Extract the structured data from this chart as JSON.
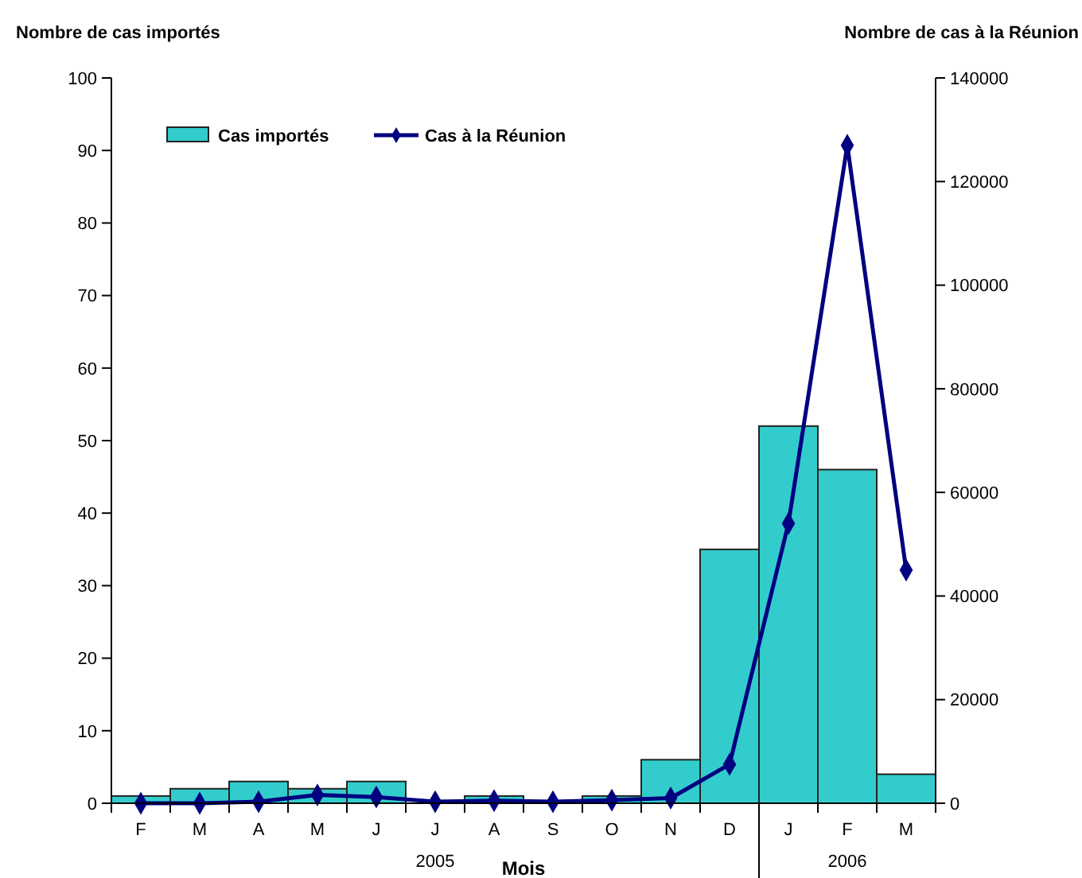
{
  "chart_data": {
    "type": "bar",
    "xlabel": "Mois",
    "ylabel": "Nombre de cas importés",
    "y2label": "Nombre de cas à la Réunion",
    "categories": [
      "F",
      "M",
      "A",
      "M",
      "J",
      "J",
      "A",
      "S",
      "O",
      "N",
      "D",
      "J",
      "F",
      "M"
    ],
    "series": [
      {
        "name": "Cas importés",
        "color": "#33cccc",
        "values": [
          1,
          2,
          3,
          2,
          3,
          0,
          1,
          0,
          1,
          6,
          35,
          52,
          46,
          4
        ]
      },
      {
        "name": "Cas à la Réunion",
        "type": "line",
        "axis": "y2",
        "color": "#000080",
        "marker": "diamond",
        "values": [
          0,
          0,
          300,
          1600,
          1200,
          300,
          500,
          300,
          600,
          1000,
          7500,
          54000,
          127000,
          45000
        ]
      }
    ],
    "ylim": [
      0,
      100
    ],
    "yticks": [
      0,
      10,
      20,
      30,
      40,
      50,
      60,
      70,
      80,
      90,
      100
    ],
    "y2lim": [
      0,
      140000
    ],
    "y2ticks": [
      0,
      20000,
      40000,
      60000,
      80000,
      100000,
      120000,
      140000
    ],
    "grid": false,
    "legend": "top left",
    "annotations": [
      "2005",
      "2006"
    ]
  }
}
